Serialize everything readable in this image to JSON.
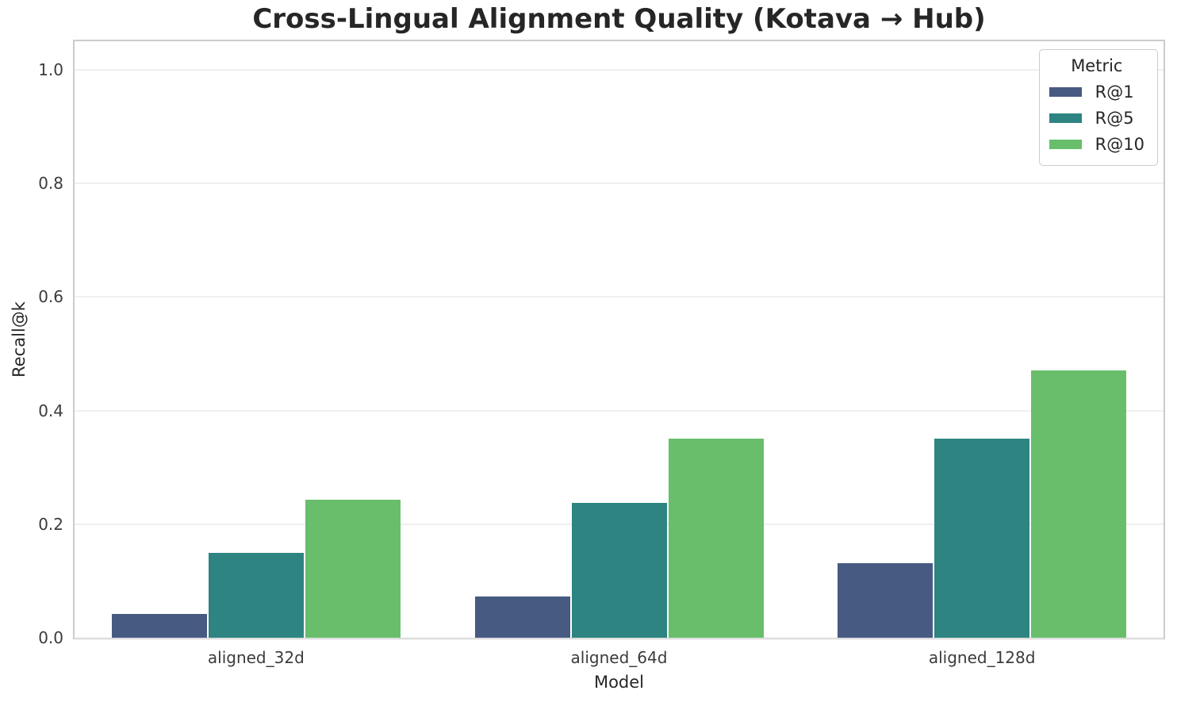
{
  "chart_data": {
    "type": "bar",
    "title": "Cross-Lingual Alignment Quality (Kotava → Hub)",
    "xlabel": "Model",
    "ylabel": "Recall@k",
    "categories": [
      "aligned_32d",
      "aligned_64d",
      "aligned_128d"
    ],
    "series": [
      {
        "name": "R@1",
        "color": "#475a81",
        "values": [
          0.042,
          0.073,
          0.131
        ]
      },
      {
        "name": "R@5",
        "color": "#2e8480",
        "values": [
          0.149,
          0.237,
          0.35
        ]
      },
      {
        "name": "R@10",
        "color": "#68be6b",
        "values": [
          0.243,
          0.35,
          0.471
        ]
      }
    ],
    "ylim": [
      0,
      1.05
    ],
    "yticks": [
      0.0,
      0.2,
      0.4,
      0.6,
      0.8,
      1.0
    ],
    "grid": "horizontal",
    "legend": {
      "title": "Metric",
      "position": "upper right"
    }
  },
  "style": {
    "grid_color": "#efefef",
    "spine_color": "#cccccc",
    "text_color": "#262626",
    "tick_color": "#3b3b3b",
    "background": "#ffffff"
  }
}
